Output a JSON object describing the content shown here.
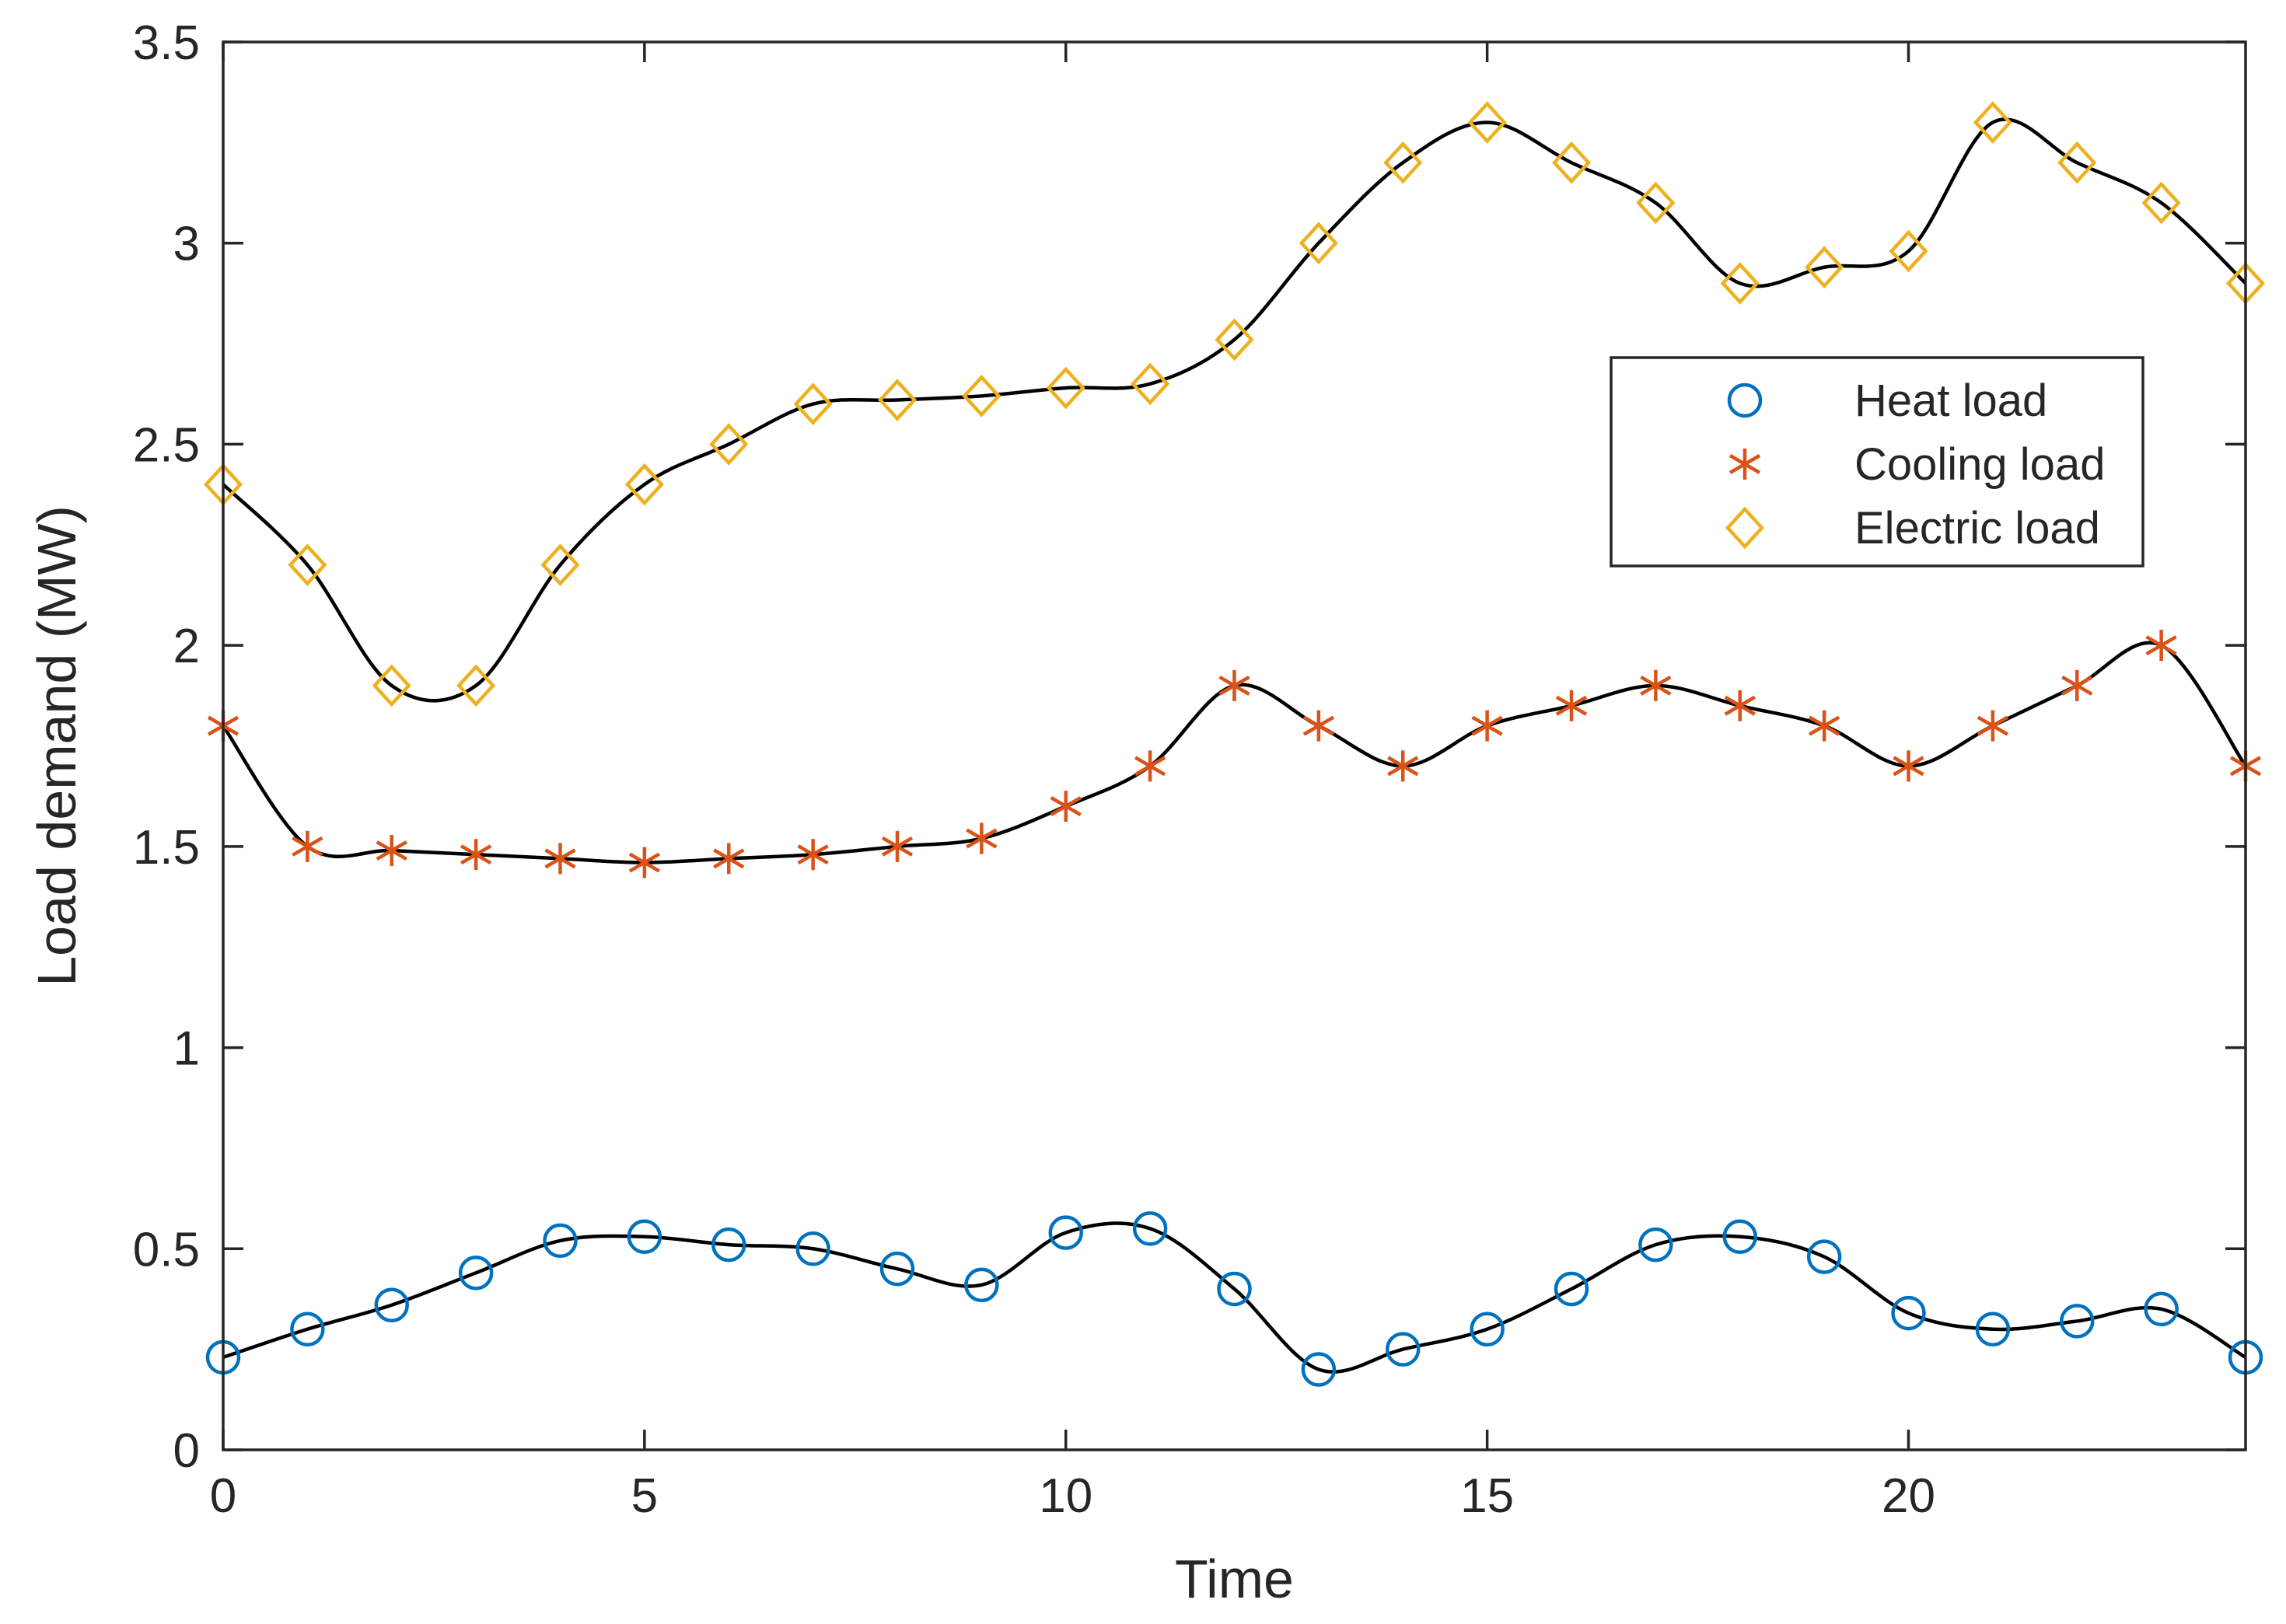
{
  "chart_data": {
    "type": "line",
    "title": "",
    "xlabel": "Time",
    "ylabel": "Load demand (MW)",
    "xlim": [
      0,
      24
    ],
    "ylim": [
      0,
      3.5
    ],
    "xticks": [
      0,
      5,
      10,
      15,
      20
    ],
    "xtick_labels": [
      "0",
      "5",
      "10",
      "15",
      "20"
    ],
    "yticks": [
      0,
      0.5,
      1,
      1.5,
      2,
      2.5,
      3,
      3.5
    ],
    "ytick_labels": [
      "0",
      "0.5",
      "1",
      "1.5",
      "2",
      "2.5",
      "3",
      "3.5"
    ],
    "grid": false,
    "legend_position": "right",
    "x": [
      0,
      1,
      2,
      3,
      4,
      5,
      6,
      7,
      8,
      9,
      10,
      11,
      12,
      13,
      14,
      15,
      16,
      17,
      18,
      19,
      20,
      21,
      22,
      23,
      24
    ],
    "series": [
      {
        "name": "Heat load",
        "marker": "circle",
        "color": "#0072BD",
        "values": [
          0.23,
          0.3,
          0.36,
          0.44,
          0.52,
          0.53,
          0.51,
          0.5,
          0.45,
          0.41,
          0.54,
          0.55,
          0.4,
          0.2,
          0.25,
          0.3,
          0.4,
          0.51,
          0.53,
          0.48,
          0.34,
          0.3,
          0.32,
          0.35,
          0.23
        ]
      },
      {
        "name": "Cooling load",
        "marker": "asterisk",
        "color": "#D95319",
        "values": [
          1.8,
          1.5,
          1.49,
          1.48,
          1.47,
          1.46,
          1.47,
          1.48,
          1.5,
          1.52,
          1.6,
          1.7,
          1.9,
          1.8,
          1.7,
          1.8,
          1.85,
          1.9,
          1.85,
          1.8,
          1.7,
          1.8,
          1.9,
          2.0,
          1.7
        ]
      },
      {
        "name": "Electric load",
        "marker": "diamond",
        "color": "#EDB120",
        "values": [
          2.4,
          2.2,
          1.9,
          1.9,
          2.2,
          2.4,
          2.5,
          2.6,
          2.61,
          2.62,
          2.64,
          2.65,
          2.76,
          3.0,
          3.2,
          3.3,
          3.2,
          3.1,
          2.9,
          2.94,
          2.98,
          3.3,
          3.2,
          3.1,
          2.9
        ]
      }
    ],
    "fit_line_color": "#000000"
  }
}
